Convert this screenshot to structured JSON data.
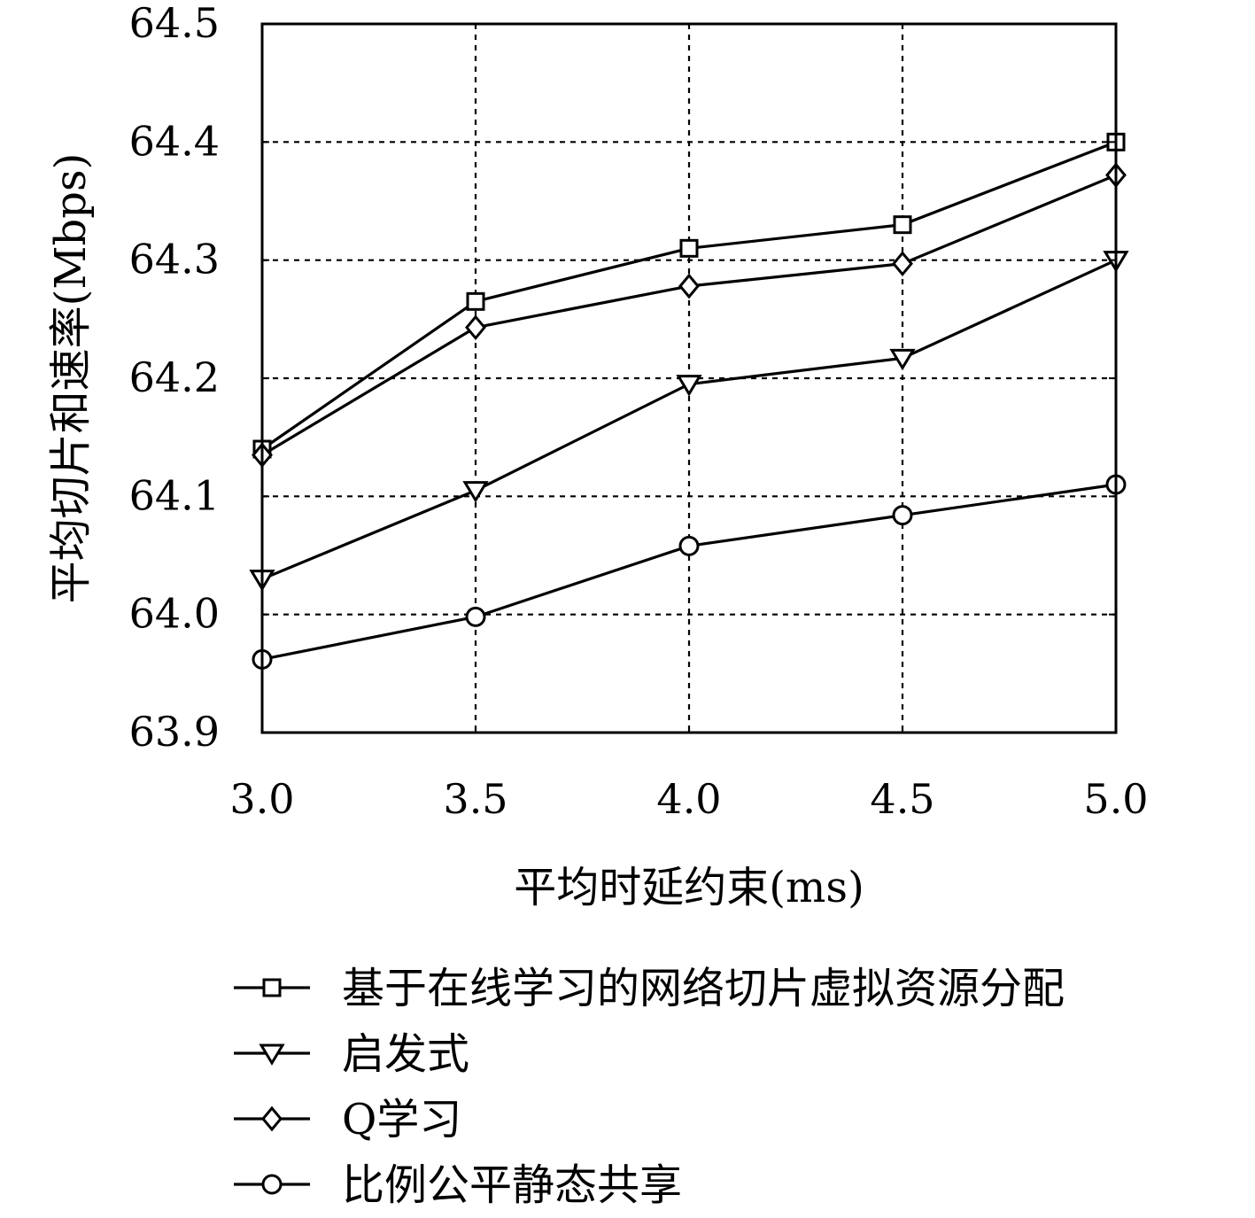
{
  "chart_data": {
    "type": "line",
    "title": "",
    "xlabel": "平均时延约束(ms)",
    "ylabel": "平均切片和速率(Mbps)",
    "x": [
      3.0,
      3.5,
      4.0,
      4.5,
      5.0
    ],
    "x_tick_labels": [
      "3.0",
      "3.5",
      "4.0",
      "4.5",
      "5.0"
    ],
    "y_ticks": [
      63.9,
      64.0,
      64.1,
      64.2,
      64.3,
      64.4,
      64.5
    ],
    "y_tick_labels": [
      "63.9",
      "64.0",
      "64.1",
      "64.2",
      "64.3",
      "64.4",
      "64.5"
    ],
    "xlim": [
      3.0,
      5.0
    ],
    "ylim": [
      63.9,
      64.5
    ],
    "grid": true,
    "legend_position": "bottom",
    "series": [
      {
        "name": "基于在线学习的网络切片虚拟资源分配",
        "marker": "square",
        "values": [
          64.14,
          64.265,
          64.31,
          64.33,
          64.4
        ]
      },
      {
        "name": "启发式",
        "marker": "triangle-down",
        "values": [
          64.03,
          64.105,
          64.195,
          64.217,
          64.3
        ]
      },
      {
        "name": "Q学习",
        "marker": "diamond",
        "values": [
          64.135,
          64.243,
          64.278,
          64.297,
          64.372
        ]
      },
      {
        "name": "比例公平静态共享",
        "marker": "circle",
        "values": [
          63.962,
          63.998,
          64.058,
          64.084,
          64.11
        ]
      }
    ],
    "colors": {
      "line": "#000000",
      "grid": "#000000",
      "background": "#ffffff"
    }
  }
}
